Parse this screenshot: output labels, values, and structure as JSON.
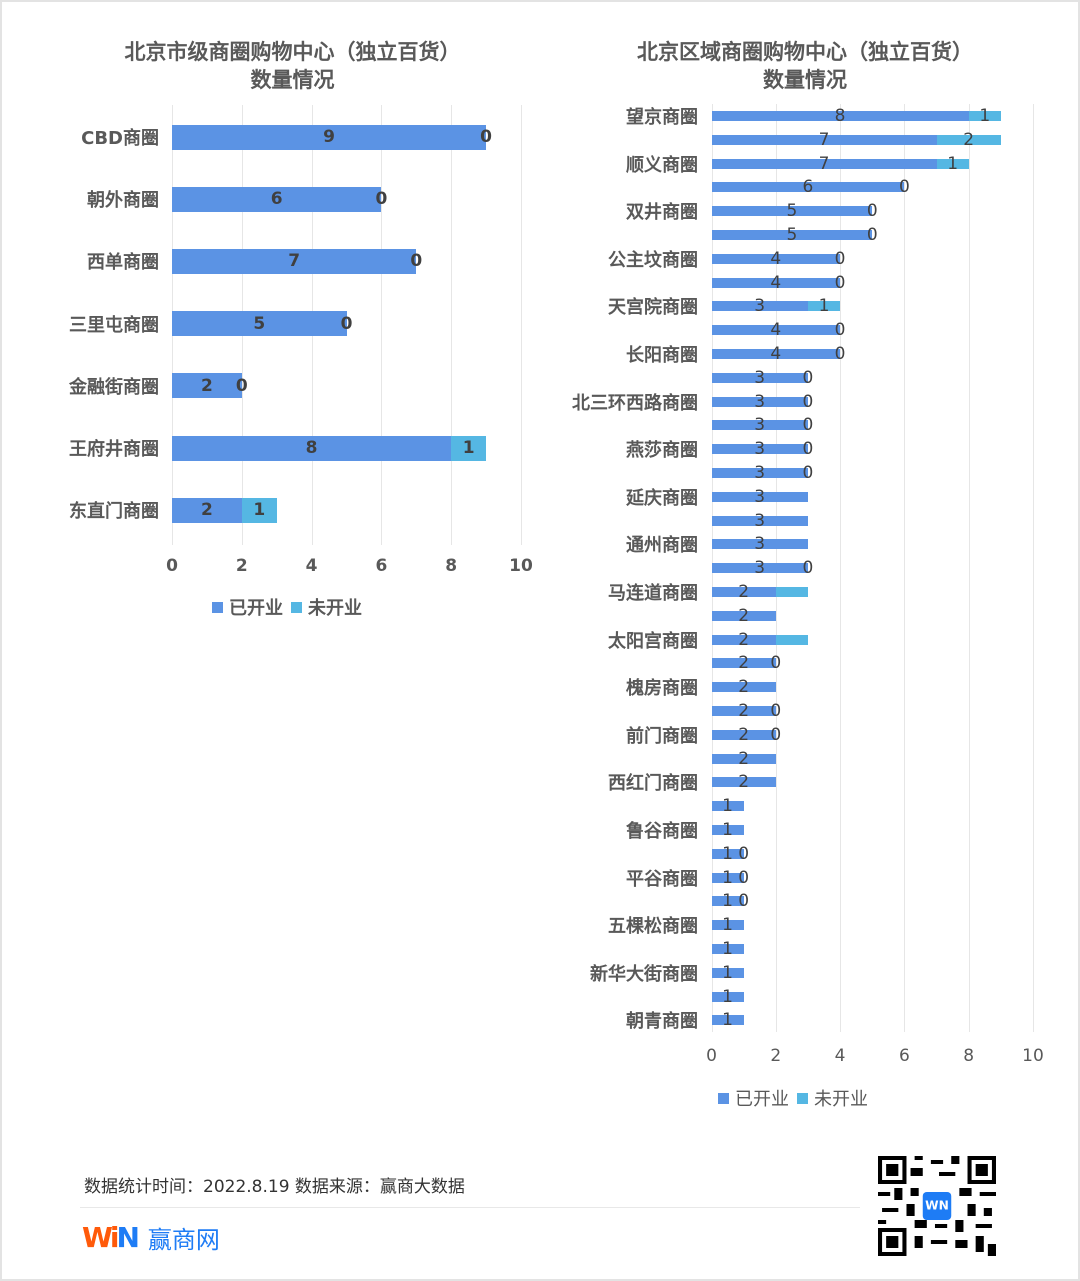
{
  "chart_data": [
    {
      "type": "bar",
      "orientation": "horizontal",
      "stacked": true,
      "title": "北京市级商圈购物中心（独立百货）数量情况",
      "title_lines": [
        "北京市级商圈购物中心（独立百货）",
        "数量情况"
      ],
      "xlabel": "",
      "ylabel": "",
      "xlim": [
        0,
        10
      ],
      "xticks": [
        "0",
        "2",
        "4",
        "6",
        "8",
        "10"
      ],
      "grid": true,
      "legend_position": "bottom",
      "categories": [
        "CBD商圈",
        "朝外商圈",
        "西单商圈",
        "三里屯商圈",
        "金融街商圈",
        "王府井商圈",
        "东直门商圈"
      ],
      "series": [
        {
          "name": "已开业",
          "color": "#5b93e4",
          "values": [
            9,
            6,
            7,
            5,
            2,
            8,
            2
          ],
          "labels": [
            "9",
            "6",
            "7",
            "5",
            "2",
            "8",
            "2"
          ]
        },
        {
          "name": "未开业",
          "color": "#55b7e3",
          "values": [
            0,
            0,
            0,
            0,
            0,
            1,
            1
          ],
          "labels": [
            "0",
            "0",
            "0",
            "0",
            "0",
            "1",
            "1"
          ]
        }
      ]
    },
    {
      "type": "bar",
      "orientation": "horizontal",
      "stacked": true,
      "title": "北京区域商圈购物中心（独立百货）数量情况",
      "title_lines": [
        "北京区域商圈购物中心（独立百货）",
        "数量情况"
      ],
      "xlabel": "",
      "ylabel": "",
      "xlim": [
        0,
        10
      ],
      "xticks": [
        "0",
        "2",
        "4",
        "6",
        "8",
        "10"
      ],
      "grid": true,
      "legend_position": "bottom",
      "note": "39 bars; only every other category label is visible (unlabeled rows have empty labels)",
      "categories": [
        "望京商圈",
        "",
        "顺义商圈",
        "",
        "双井商圈",
        "",
        "公主坟商圈",
        "",
        "天宫院商圈",
        "",
        "长阳商圈",
        "",
        "北三环西路商圈",
        "",
        "燕莎商圈",
        "",
        "延庆商圈",
        "",
        "通州商圈",
        "",
        "马连道商圈",
        "",
        "太阳宫商圈",
        "",
        "槐房商圈",
        "",
        "前门商圈",
        "",
        "西红门商圈",
        "",
        "鲁谷商圈",
        "",
        "平谷商圈",
        "",
        "五棵松商圈",
        "",
        "新华大街商圈",
        "",
        "朝青商圈"
      ],
      "series": [
        {
          "name": "已开业",
          "color": "#5b93e4",
          "values": [
            8,
            7,
            7,
            6,
            5,
            5,
            4,
            4,
            3,
            4,
            4,
            3,
            3,
            3,
            3,
            3,
            3,
            3,
            3,
            3,
            2,
            2,
            2,
            2,
            2,
            2,
            2,
            2,
            2,
            1,
            1,
            1,
            1,
            1,
            1,
            1,
            1,
            1,
            1
          ],
          "labels": [
            "8",
            "7",
            "7",
            "6",
            "5",
            "5",
            "4",
            "4",
            "3",
            "4",
            "4",
            "3",
            "3",
            "3",
            "3",
            "3",
            "3",
            "3",
            "3",
            "3",
            "2",
            "2",
            "2",
            "2",
            "2",
            "2",
            "2",
            "2",
            "2",
            "1",
            "1",
            "1",
            "1",
            "1",
            "1",
            "1",
            "1",
            "1",
            "1"
          ]
        },
        {
          "name": "未开业",
          "color": "#55b7e3",
          "values": [
            1,
            2,
            1,
            0,
            0,
            0,
            0,
            0,
            1,
            0,
            0,
            0,
            0,
            0,
            0,
            0,
            0,
            0,
            0,
            0,
            1,
            0,
            1,
            0,
            0,
            0,
            0,
            0,
            0,
            0,
            0,
            0,
            0,
            0,
            0,
            0,
            0,
            0,
            0
          ],
          "labels": [
            "1",
            "2",
            "1",
            "0",
            "0",
            "0",
            "0",
            "0",
            "1",
            "0",
            "0",
            "0",
            "0",
            "0",
            "0",
            "0",
            "",
            "",
            "",
            "0",
            "",
            "",
            "",
            "0",
            "",
            "0",
            "0",
            "",
            "",
            "",
            "",
            "0",
            "0",
            "0",
            "",
            "",
            "",
            "",
            ""
          ]
        }
      ]
    }
  ],
  "footer": {
    "source_text": "数据统计时间：2022.8.19  数据来源：赢商大数据",
    "logo_w": "Wi",
    "logo_n": "N",
    "logo_name": "赢商网",
    "qr_icon": "qr-code-icon"
  }
}
